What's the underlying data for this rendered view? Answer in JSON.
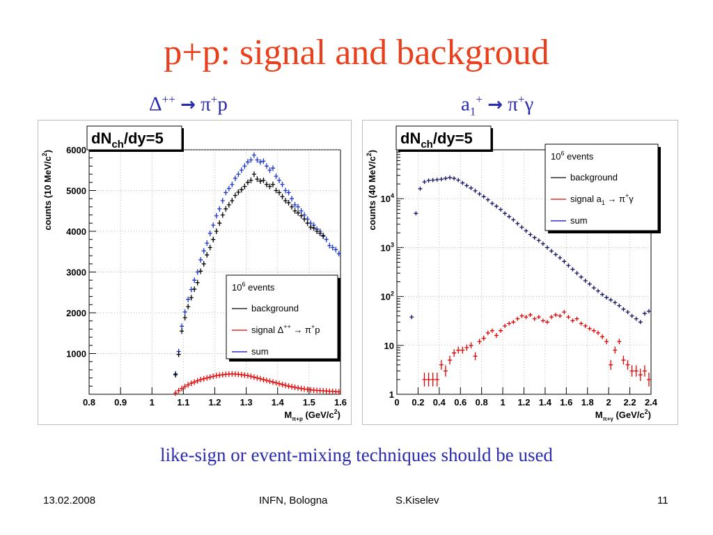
{
  "slide": {
    "title": "p+p: signal and backgroud",
    "left_subtitle": {
      "particle": "Δ",
      "charge": "++",
      "arrow": "→",
      "product": "π",
      "product_charge": "+",
      "tail": "p"
    },
    "right_subtitle": {
      "particle": "a",
      "index": "1",
      "charge": "+",
      "arrow": "→",
      "product": "π",
      "product_charge": "+",
      "tail": "γ"
    },
    "caption": "like-sign or event-mixing techniques should be used",
    "footer": {
      "date": "13.02.2008",
      "venue": "INFN, Bologna",
      "author": "S.Kiselev",
      "page": "11"
    },
    "accent_color": "#e8401c",
    "text_blue": "#2b2bb0"
  },
  "chart_data": [
    {
      "type": "scatter",
      "box_title": "dN_ch/dy=5",
      "title_main": "dN",
      "title_sub": "ch",
      "title_tail": "/dy=5",
      "xlabel": "M",
      "xlabel_sub": "π+p",
      "xlabel_unit": "(GeV/c",
      "xlabel_unit_sup": "2",
      "xlabel_close": ")",
      "ylabel": "counts (10 MeV/c",
      "ylabel_sup": "2",
      "ylabel_close": ")",
      "xlim": [
        0.8,
        1.6
      ],
      "ylim": [
        0,
        6000
      ],
      "y_scale": "linear",
      "grid": true,
      "x_ticks": [
        "0.8",
        "0.9",
        "1",
        "1.1",
        "1.2",
        "1.3",
        "1.4",
        "1.5",
        "1.6"
      ],
      "y_ticks": [
        "1000",
        "2000",
        "3000",
        "4000",
        "5000",
        "6000"
      ],
      "legend": {
        "position": "bottom-right",
        "header": "10",
        "header_sup": "6",
        "header_tail": " events",
        "entries": [
          {
            "label": "background",
            "color": "#000000"
          },
          {
            "label": "signal Δ",
            "label_sup": "++",
            "label_tail": " → π",
            "label_sup2": "+",
            "label_end": "p",
            "color": "#e00000"
          },
          {
            "label": "sum",
            "color": "#0000cc"
          }
        ]
      },
      "series": [
        {
          "name": "sum",
          "color": "#1a33cc",
          "x": [
            1.075,
            1.085,
            1.095,
            1.105,
            1.115,
            1.125,
            1.135,
            1.145,
            1.155,
            1.165,
            1.175,
            1.185,
            1.195,
            1.205,
            1.215,
            1.225,
            1.235,
            1.245,
            1.255,
            1.265,
            1.275,
            1.285,
            1.295,
            1.305,
            1.315,
            1.325,
            1.335,
            1.345,
            1.355,
            1.365,
            1.375,
            1.385,
            1.395,
            1.405,
            1.415,
            1.425,
            1.435,
            1.445,
            1.455,
            1.465,
            1.475,
            1.485,
            1.495,
            1.505,
            1.515,
            1.525,
            1.535,
            1.545,
            1.555,
            1.565,
            1.575,
            1.585,
            1.595
          ],
          "y": [
            500,
            1050,
            1670,
            2020,
            2330,
            2570,
            2800,
            3000,
            3300,
            3520,
            3710,
            3950,
            4150,
            4380,
            4550,
            4750,
            4950,
            5050,
            5150,
            5300,
            5400,
            5500,
            5600,
            5700,
            5750,
            5870,
            5750,
            5700,
            5720,
            5600,
            5500,
            5550,
            5350,
            5250,
            5150,
            5000,
            4950,
            4800,
            4650,
            4600,
            4500,
            4400,
            4300,
            4200,
            4150,
            4050,
            4000,
            3900,
            3800,
            3650,
            3600,
            3550,
            3450
          ]
        },
        {
          "name": "background",
          "color": "#000000",
          "x": [
            1.075,
            1.085,
            1.095,
            1.105,
            1.115,
            1.125,
            1.135,
            1.145,
            1.155,
            1.165,
            1.175,
            1.185,
            1.195,
            1.205,
            1.215,
            1.225,
            1.235,
            1.245,
            1.255,
            1.265,
            1.275,
            1.285,
            1.295,
            1.305,
            1.315,
            1.325,
            1.335,
            1.345,
            1.355,
            1.365,
            1.375,
            1.385,
            1.395,
            1.405,
            1.415,
            1.425,
            1.435,
            1.445,
            1.455,
            1.465,
            1.475,
            1.485,
            1.495,
            1.505,
            1.515,
            1.525,
            1.535,
            1.545
          ],
          "y": [
            480,
            980,
            1550,
            1880,
            2150,
            2370,
            2580,
            2740,
            3020,
            3200,
            3420,
            3600,
            3800,
            4000,
            4200,
            4400,
            4550,
            4650,
            4750,
            4880,
            4960,
            5020,
            5100,
            5200,
            5250,
            5400,
            5280,
            5230,
            5250,
            5150,
            5100,
            5150,
            5000,
            4950,
            4850,
            4750,
            4700,
            4600,
            4500,
            4450,
            4380,
            4300,
            4200,
            4100,
            4080,
            4000,
            3950,
            3880
          ]
        },
        {
          "name": "signal",
          "color": "#e00000",
          "x": [
            1.075,
            1.085,
            1.095,
            1.105,
            1.115,
            1.125,
            1.135,
            1.145,
            1.155,
            1.165,
            1.175,
            1.185,
            1.195,
            1.205,
            1.215,
            1.225,
            1.235,
            1.245,
            1.255,
            1.265,
            1.275,
            1.285,
            1.295,
            1.305,
            1.315,
            1.325,
            1.335,
            1.345,
            1.355,
            1.365,
            1.375,
            1.385,
            1.395,
            1.405,
            1.415,
            1.425,
            1.435,
            1.445,
            1.455,
            1.465,
            1.475,
            1.485,
            1.495,
            1.505,
            1.515,
            1.525,
            1.535,
            1.545,
            1.555,
            1.565,
            1.575,
            1.585,
            1.595
          ],
          "y": [
            30,
            90,
            140,
            190,
            230,
            270,
            300,
            330,
            360,
            380,
            400,
            420,
            440,
            460,
            470,
            480,
            490,
            495,
            500,
            495,
            490,
            480,
            470,
            460,
            440,
            420,
            400,
            380,
            360,
            340,
            320,
            300,
            280,
            260,
            240,
            220,
            200,
            185,
            170,
            155,
            140,
            130,
            120,
            110,
            100,
            95,
            90,
            85,
            80,
            75,
            70,
            65,
            60
          ]
        }
      ]
    },
    {
      "type": "scatter",
      "box_title": "dN_ch/dy=5",
      "title_main": "dN",
      "title_sub": "ch",
      "title_tail": "/dy=5",
      "xlabel": "M",
      "xlabel_sub": "π+γ",
      "xlabel_unit": "(GeV/c",
      "xlabel_unit_sup": "2",
      "xlabel_close": ")",
      "ylabel": "counts (40 MeV/c",
      "ylabel_sup": "2",
      "ylabel_close": ")",
      "xlim": [
        0,
        2.4
      ],
      "ylim": [
        1,
        100000
      ],
      "y_scale": "log",
      "grid": true,
      "x_ticks": [
        "0",
        "0.2",
        "0.4",
        "0.6",
        "0.8",
        "1",
        "1.2",
        "1.4",
        "1.6",
        "1.8",
        "2",
        "2.2",
        "2.4"
      ],
      "y_ticks": [
        {
          "label": "1",
          "sup": ""
        },
        {
          "label": "10",
          "sup": ""
        },
        {
          "label": "10",
          "sup": "2"
        },
        {
          "label": "10",
          "sup": "3"
        },
        {
          "label": "10",
          "sup": "4"
        }
      ],
      "legend": {
        "position": "top-right",
        "header": "10",
        "header_sup": "6",
        "header_tail": " events",
        "entries": [
          {
            "label": "background",
            "color": "#000000"
          },
          {
            "label": "signal a",
            "label_sub": "1",
            "label_tail": " → π",
            "label_sup2": "+",
            "label_end": "γ",
            "color": "#e00000"
          },
          {
            "label": "sum",
            "color": "#0000cc"
          }
        ]
      },
      "series": [
        {
          "name": "sum",
          "color": "#101060",
          "x": [
            0.14,
            0.18,
            0.22,
            0.26,
            0.3,
            0.34,
            0.38,
            0.42,
            0.46,
            0.5,
            0.54,
            0.58,
            0.62,
            0.66,
            0.7,
            0.74,
            0.78,
            0.82,
            0.86,
            0.9,
            0.94,
            0.98,
            1.02,
            1.06,
            1.1,
            1.14,
            1.18,
            1.22,
            1.26,
            1.3,
            1.34,
            1.38,
            1.42,
            1.46,
            1.5,
            1.54,
            1.58,
            1.62,
            1.66,
            1.7,
            1.74,
            1.78,
            1.82,
            1.86,
            1.9,
            1.94,
            1.98,
            2.02,
            2.06,
            2.1,
            2.14,
            2.18,
            2.22,
            2.26,
            2.3,
            2.34,
            2.38
          ],
          "y": [
            38,
            5000,
            16000,
            22000,
            23500,
            24000,
            24500,
            25000,
            26000,
            27000,
            26000,
            24000,
            21000,
            18500,
            16500,
            14500,
            12500,
            11000,
            9500,
            8000,
            7000,
            6000,
            5000,
            4300,
            3700,
            3100,
            2600,
            2200,
            1850,
            1600,
            1400,
            1200,
            1000,
            850,
            720,
            620,
            520,
            430,
            360,
            300,
            250,
            210,
            180,
            150,
            130,
            110,
            95,
            85,
            75,
            65,
            55,
            48,
            40,
            35,
            30,
            45,
            50
          ]
        },
        {
          "name": "signal",
          "color": "#e00000",
          "x": [
            0.26,
            0.3,
            0.34,
            0.38,
            0.42,
            0.46,
            0.5,
            0.54,
            0.58,
            0.62,
            0.66,
            0.7,
            0.74,
            0.78,
            0.82,
            0.86,
            0.9,
            0.94,
            0.98,
            1.02,
            1.06,
            1.1,
            1.14,
            1.18,
            1.22,
            1.26,
            1.3,
            1.34,
            1.38,
            1.42,
            1.46,
            1.5,
            1.54,
            1.58,
            1.62,
            1.66,
            1.7,
            1.74,
            1.78,
            1.82,
            1.86,
            1.9,
            1.94,
            1.98,
            2.02,
            2.06,
            2.1,
            2.14,
            2.18,
            2.22,
            2.26,
            2.3,
            2.34,
            2.38
          ],
          "y": [
            2,
            2,
            2,
            2,
            4,
            3,
            5,
            7,
            8,
            8,
            9,
            10,
            6,
            12,
            14,
            18,
            20,
            16,
            20,
            25,
            28,
            30,
            35,
            40,
            38,
            42,
            35,
            38,
            32,
            30,
            38,
            42,
            40,
            48,
            38,
            32,
            35,
            28,
            25,
            22,
            20,
            18,
            15,
            12,
            4,
            8,
            12,
            5,
            4,
            3,
            3,
            2.5,
            3,
            2
          ]
        }
      ]
    }
  ]
}
